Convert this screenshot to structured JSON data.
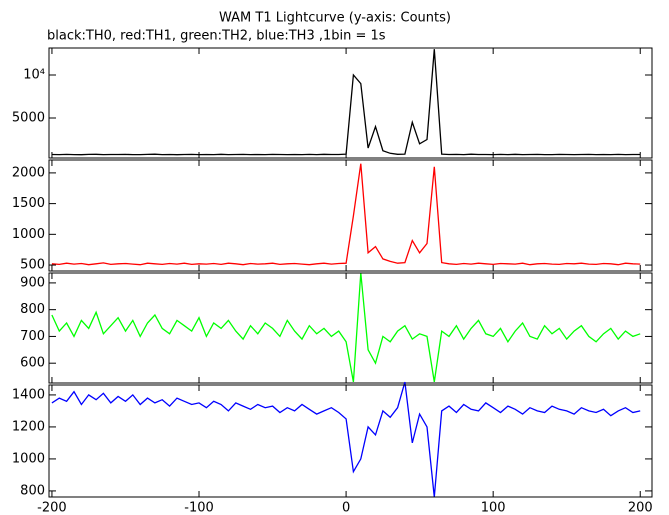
{
  "chart_data": {
    "type": "line",
    "title": "WAM T1 Lightcurve (y-axis: Counts)",
    "subtitle": "black:TH0, red:TH1, green:TH2, blue:TH3 ,1bin = 1s",
    "x": [
      -200,
      -195,
      -190,
      -185,
      -180,
      -175,
      -170,
      -165,
      -160,
      -155,
      -150,
      -145,
      -140,
      -135,
      -130,
      -125,
      -120,
      -115,
      -110,
      -105,
      -100,
      -95,
      -90,
      -85,
      -80,
      -75,
      -70,
      -65,
      -60,
      -55,
      -50,
      -45,
      -40,
      -35,
      -30,
      -25,
      -20,
      -15,
      -10,
      -5,
      0,
      5,
      10,
      15,
      20,
      25,
      30,
      35,
      40,
      45,
      50,
      55,
      60,
      65,
      70,
      75,
      80,
      85,
      90,
      95,
      100,
      105,
      110,
      115,
      120,
      125,
      130,
      135,
      140,
      145,
      150,
      155,
      160,
      165,
      170,
      175,
      180,
      185,
      190,
      195,
      200
    ],
    "xlim": [
      -202,
      208
    ],
    "xticks": [
      -200,
      -100,
      0,
      100,
      200
    ],
    "panels": [
      {
        "ylim": [
          350,
          13140
        ],
        "yticks": [
          5000,
          {
            "value": 10000,
            "label": "10⁴"
          }
        ],
        "series": [
          {
            "color": "#000000",
            "values": [
              760,
              740,
              770,
              750,
              735,
              765,
              780,
              745,
              755,
              760,
              770,
              740,
              750,
              765,
              790,
              745,
              760,
              735,
              755,
              770,
              750,
              760,
              745,
              775,
              740,
              755,
              765,
              750,
              760,
              745,
              770,
              755,
              740,
              760,
              750,
              765,
              745,
              780,
              755,
              760,
              800,
              10000,
              9000,
              1500,
              4000,
              1200,
              900,
              780,
              800,
              4500,
              2000,
              2500,
              13000,
              800,
              760,
              770,
              745,
              790,
              755,
              760,
              740,
              765,
              750,
              775,
              745,
              760,
              770,
              750,
              745,
              765,
              755,
              740,
              760,
              770,
              750,
              760,
              745,
              765,
              750,
              760,
              755
            ]
          }
        ]
      },
      {
        "ylim": [
          403,
          2210
        ],
        "yticks": [
          500,
          1000,
          1500,
          2000
        ],
        "series": [
          {
            "color": "#ff0000",
            "values": [
              520,
              510,
              530,
              515,
              525,
              505,
              520,
              535,
              510,
              520,
              525,
              515,
              505,
              530,
              520,
              510,
              525,
              515,
              530,
              510,
              520,
              515,
              525,
              510,
              530,
              520,
              505,
              525,
              515,
              520,
              530,
              510,
              520,
              525,
              515,
              505,
              520,
              530,
              515,
              525,
              530,
              1300,
              2150,
              700,
              800,
              600,
              560,
              530,
              540,
              900,
              700,
              850,
              2100,
              540,
              520,
              510,
              525,
              515,
              530,
              520,
              510,
              525,
              520,
              515,
              530,
              505,
              520,
              525,
              515,
              510,
              525,
              520,
              530,
              515,
              510,
              525,
              520,
              505,
              530,
              520,
              515
            ]
          }
        ]
      },
      {
        "ylim": [
          526,
          937
        ],
        "yticks": [
          600,
          700,
          800,
          900
        ],
        "series": [
          {
            "color": "#00ff00",
            "values": [
              780,
              720,
              750,
              700,
              760,
              730,
              790,
              710,
              740,
              770,
              720,
              760,
              700,
              750,
              780,
              730,
              710,
              760,
              740,
              720,
              770,
              700,
              750,
              730,
              760,
              720,
              690,
              740,
              710,
              750,
              730,
              700,
              760,
              720,
              690,
              740,
              710,
              730,
              700,
              720,
              680,
              530,
              937,
              650,
              600,
              700,
              680,
              720,
              740,
              690,
              710,
              700,
              530,
              720,
              700,
              740,
              690,
              730,
              760,
              710,
              700,
              730,
              680,
              720,
              750,
              700,
              690,
              740,
              710,
              730,
              690,
              720,
              740,
              700,
              680,
              710,
              730,
              690,
              720,
              700,
              710
            ]
          }
        ]
      },
      {
        "ylim": [
          762,
          1462
        ],
        "yticks": [
          800,
          1000,
          1200,
          1400
        ],
        "series": [
          {
            "color": "#0000ff",
            "values": [
              1350,
              1380,
              1360,
              1420,
              1340,
              1400,
              1370,
              1410,
              1350,
              1390,
              1360,
              1400,
              1340,
              1380,
              1350,
              1370,
              1330,
              1380,
              1360,
              1340,
              1350,
              1320,
              1360,
              1340,
              1300,
              1350,
              1330,
              1310,
              1340,
              1320,
              1330,
              1290,
              1320,
              1300,
              1340,
              1310,
              1280,
              1300,
              1320,
              1290,
              1250,
              920,
              1000,
              1200,
              1150,
              1300,
              1260,
              1320,
              1480,
              1100,
              1280,
              1200,
              762,
              1300,
              1330,
              1290,
              1340,
              1310,
              1300,
              1350,
              1320,
              1290,
              1330,
              1310,
              1280,
              1320,
              1300,
              1290,
              1330,
              1310,
              1300,
              1280,
              1320,
              1300,
              1290,
              1310,
              1270,
              1300,
              1320,
              1290,
              1300
            ]
          }
        ]
      }
    ]
  }
}
